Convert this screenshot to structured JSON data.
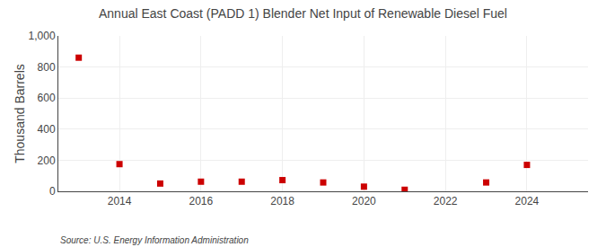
{
  "chart_data": {
    "type": "scatter",
    "title": "Annual East Coast (PADD 1) Blender Net Input of Renewable Diesel Fuel",
    "y_label": "Thousand Barrels",
    "annotations": [
      "Source: U.S. Energy Information Administration"
    ],
    "x": [
      2013,
      2014,
      2015,
      2016,
      2017,
      2018,
      2019,
      2020,
      2021,
      2023,
      2024
    ],
    "values": [
      860,
      175,
      50,
      62,
      62,
      72,
      57,
      30,
      10,
      57,
      170
    ],
    "color": "#cc0000",
    "marker": "square",
    "xlim": [
      2012.5,
      2025.5
    ],
    "xticks": [
      2014,
      2016,
      2018,
      2020,
      2022,
      2024
    ],
    "ylim": [
      0,
      1000
    ],
    "yticks": [
      0,
      200,
      400,
      600,
      800,
      {
        "value": 1000,
        "label": "1,000"
      }
    ],
    "grid": true
  }
}
